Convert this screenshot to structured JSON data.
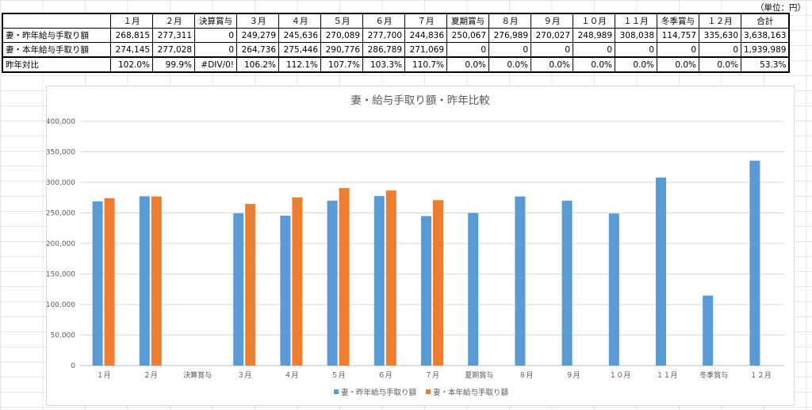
{
  "unit_label": "（単位：円）",
  "table": {
    "headers": [
      "",
      "１月",
      "２月",
      "決算賞与",
      "３月",
      "４月",
      "５月",
      "６月",
      "７月",
      "夏期賞与",
      "８月",
      "９月",
      "１０月",
      "１１月",
      "冬季賞与",
      "１２月",
      "合計"
    ],
    "rows": [
      {
        "label": "妻・昨年給与手取り額",
        "values": [
          "268,815",
          "277,311",
          "0",
          "249,279",
          "245,636",
          "270,089",
          "277,700",
          "244,836",
          "250,067",
          "276,989",
          "270,027",
          "248,989",
          "308,038",
          "114,757",
          "335,630",
          "3,638,163"
        ]
      },
      {
        "label": "妻・本年給与手取り額",
        "values": [
          "274,145",
          "277,028",
          "0",
          "264,736",
          "275,446",
          "290,776",
          "286,789",
          "271,069",
          "0",
          "0",
          "0",
          "0",
          "0",
          "0",
          "0",
          "1,939,989"
        ]
      },
      {
        "label": "昨年対比",
        "values": [
          "102.0%",
          "99.9%",
          "#DIV/0!",
          "106.2%",
          "112.1%",
          "107.7%",
          "103.3%",
          "110.7%",
          "0.0%",
          "0.0%",
          "0.0%",
          "0.0%",
          "0.0%",
          "0.0%",
          "0.0%",
          "53.3%"
        ]
      }
    ]
  },
  "chart_data": {
    "type": "bar",
    "title": "妻・給与手取り額・昨年比較",
    "categories": [
      "１月",
      "２月",
      "決算賞与",
      "３月",
      "４月",
      "５月",
      "６月",
      "７月",
      "夏期賞与",
      "８月",
      "９月",
      "１０月",
      "１１月",
      "冬季賞与",
      "１２月"
    ],
    "series": [
      {
        "name": "妻・昨年給与手取り額",
        "color": "#5B9BD5",
        "values": [
          268815,
          277311,
          0,
          249279,
          245636,
          270089,
          277700,
          244836,
          250067,
          276989,
          270027,
          248989,
          308038,
          114757,
          335630
        ]
      },
      {
        "name": "妻・本年給与手取り額",
        "color": "#ED7D31",
        "values": [
          274145,
          277028,
          0,
          264736,
          275446,
          290776,
          286789,
          271069,
          0,
          0,
          0,
          0,
          0,
          0,
          0
        ]
      }
    ],
    "ylim": [
      0,
      400000
    ],
    "yticks": [
      0,
      50000,
      100000,
      150000,
      200000,
      250000,
      300000,
      350000,
      400000
    ],
    "ytick_labels": [
      "0",
      "50,000",
      "100,000",
      "150,000",
      "200,000",
      "250,000",
      "300,000",
      "350,000",
      "400,000"
    ],
    "grid": true,
    "legend_position": "bottom"
  }
}
